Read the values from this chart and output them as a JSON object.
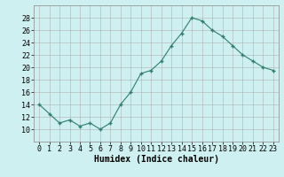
{
  "x": [
    0,
    1,
    2,
    3,
    4,
    5,
    6,
    7,
    8,
    9,
    10,
    11,
    12,
    13,
    14,
    15,
    16,
    17,
    18,
    19,
    20,
    21,
    22,
    23
  ],
  "y": [
    14,
    12.5,
    11,
    11.5,
    10.5,
    11,
    10,
    11,
    14,
    16,
    19,
    19.5,
    21,
    23.5,
    25.5,
    28,
    27.5,
    26,
    25,
    23.5,
    22,
    21,
    20,
    19.5
  ],
  "xlabel": "Humidex (Indice chaleur)",
  "ylim": [
    8,
    30
  ],
  "xlim": [
    -0.5,
    23.5
  ],
  "yticks": [
    10,
    12,
    14,
    16,
    18,
    20,
    22,
    24,
    26,
    28
  ],
  "xticks": [
    0,
    1,
    2,
    3,
    4,
    5,
    6,
    7,
    8,
    9,
    10,
    11,
    12,
    13,
    14,
    15,
    16,
    17,
    18,
    19,
    20,
    21,
    22,
    23
  ],
  "line_color": "#2e7d6e",
  "marker": "+",
  "bg_color": "#cff0f0",
  "grid_color_major": "#b0b0b0",
  "grid_color_minor": "#d0d0d0",
  "xlabel_fontsize": 7,
  "tick_fontsize": 6
}
